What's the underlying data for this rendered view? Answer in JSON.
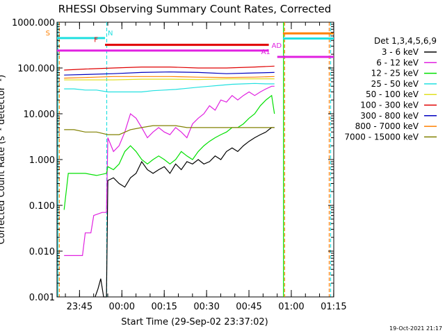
{
  "chart_data": {
    "type": "line",
    "title": "RHESSI Observing Summary Count Rates, Corrected",
    "xlabel": "Start Time (29-Sep-02 23:37:02)",
    "ylabel": "Corrected Count Rate (s⁻¹ detector⁻¹)",
    "y_scale": "log",
    "ylim": [
      0.001,
      1000
    ],
    "y_ticks": [
      0.001,
      0.01,
      0.1,
      1,
      10,
      100,
      1000
    ],
    "y_tick_labels": [
      "0.001",
      "0.010",
      "0.100",
      "1.000",
      "10.000",
      "100.000",
      "1000.000"
    ],
    "x_unit": "minutes after 23:37:02 on 29-Sep-02",
    "xlim": [
      0,
      98
    ],
    "x_ticks": [
      7.97,
      22.97,
      37.97,
      52.97,
      67.97,
      82.97,
      97.97
    ],
    "x_tick_labels": [
      "23:45",
      "00:00",
      "00:15",
      "00:30",
      "00:45",
      "01:00",
      "01:15"
    ],
    "timestamp": "19-Oct-2021 21:17",
    "legend": {
      "placement": "right",
      "title": "Det 1,3,4,5,6,9",
      "entries": [
        {
          "label": "3 - 6 keV",
          "color": "#000000"
        },
        {
          "label": "6 - 12 keV",
          "color": "#e020e0"
        },
        {
          "label": "12 - 25 keV",
          "color": "#00e000"
        },
        {
          "label": "25 - 50 keV",
          "color": "#20e0e0"
        },
        {
          "label": "50 - 100 keV",
          "color": "#e0e020"
        },
        {
          "label": "100 - 300 keV",
          "color": "#e00000"
        },
        {
          "label": "300 - 800 keV",
          "color": "#0000c0"
        },
        {
          "label": "800 - 7000 keV",
          "color": "#ff8000"
        },
        {
          "label": "7000 - 15000 keV",
          "color": "#808000"
        }
      ]
    },
    "flag_bars": [
      {
        "label": "S",
        "color": "#20e0e0",
        "x_start": 0,
        "x_end": 17,
        "y": 450,
        "label_color": "#ff8000"
      },
      {
        "label": "N",
        "color": "#20e0e0",
        "x_start": 17,
        "x_end": 17,
        "y": 450,
        "label_color": "#20e0e0"
      },
      {
        "label": "F",
        "color": "#e00000",
        "x_start": 17,
        "x_end": 75,
        "y": 320,
        "label_color": "#e00000"
      },
      {
        "label": "",
        "color": "#e020e0",
        "x_start": 0,
        "x_end": 75,
        "y": 240
      },
      {
        "label": "AD",
        "color": "#e020e0",
        "x_start": 75,
        "x_end": 75,
        "y": 240,
        "label_color": "#e020e0"
      },
      {
        "label": "A1",
        "color": "#e020e0",
        "x_start": 78,
        "x_end": 98,
        "y": 175,
        "label_color": "#e020e0"
      },
      {
        "label": "",
        "color": "#20e0e0",
        "x_start": 80,
        "x_end": 98,
        "y": 440
      },
      {
        "label": "",
        "color": "#ff8000",
        "x_start": 80,
        "x_end": 98,
        "y": 570
      }
    ],
    "vertical_markers": [
      {
        "x": 0.3,
        "color": "#20e0e0",
        "style": "solid"
      },
      {
        "x": 0.8,
        "color": "#ff8000",
        "style": "dashed"
      },
      {
        "x": 17.6,
        "color": "#20e0e0",
        "style": "dashed"
      },
      {
        "x": 80.2,
        "color": "#00e000",
        "style": "solid"
      },
      {
        "x": 80.6,
        "color": "#ff8000",
        "style": "dashed"
      },
      {
        "x": 96.4,
        "color": "#ff8000",
        "style": "dashed"
      },
      {
        "x": 96.9,
        "color": "#20e0e0",
        "style": "dashed"
      }
    ],
    "series": [
      {
        "name": "3 - 6 keV",
        "color": "#000000",
        "x": [
          13.5,
          14.5,
          15.5,
          16.5,
          17.5,
          18,
          20,
          22,
          24,
          26,
          28,
          30,
          32,
          34,
          36,
          38,
          40,
          42,
          44,
          46,
          48,
          50,
          52,
          54,
          56,
          58,
          60,
          62,
          64,
          66,
          68,
          70,
          72,
          74,
          75,
          76,
          77
        ],
        "y": [
          0.001,
          0.0015,
          0.0025,
          0.001,
          0.001,
          0.35,
          0.4,
          0.3,
          0.25,
          0.4,
          0.5,
          0.9,
          0.6,
          0.5,
          0.6,
          0.7,
          0.5,
          0.8,
          0.6,
          0.9,
          0.8,
          1.0,
          0.8,
          0.9,
          1.2,
          1.0,
          1.5,
          1.8,
          1.5,
          2.0,
          2.5,
          3.0,
          3.5,
          4.0,
          4.5,
          5.0,
          5.0
        ]
      },
      {
        "name": "6 - 12 keV",
        "color": "#e020e0",
        "x": [
          2.5,
          6,
          9,
          10,
          12,
          13,
          16,
          17.5,
          18,
          20,
          22,
          24,
          26,
          28,
          30,
          32,
          34,
          36,
          38,
          40,
          42,
          44,
          46,
          48,
          50,
          52,
          54,
          56,
          58,
          60,
          62,
          64,
          66,
          68,
          70,
          72,
          74,
          76,
          77
        ],
        "y": [
          0.008,
          0.008,
          0.008,
          0.025,
          0.025,
          0.06,
          0.07,
          0.07,
          3.0,
          1.5,
          2.0,
          4.0,
          10.0,
          8.0,
          5.0,
          3.0,
          4.0,
          5.0,
          4.0,
          3.5,
          5.0,
          4.0,
          3.0,
          6.0,
          8.0,
          10.0,
          15.0,
          12.0,
          20.0,
          18.0,
          25.0,
          20.0,
          25.0,
          30.0,
          25.0,
          30.0,
          35.0,
          40.0,
          40.0
        ]
      },
      {
        "name": "12 - 25 keV",
        "color": "#00e000",
        "x": [
          2.5,
          4,
          6,
          9,
          10,
          14,
          17.5,
          18,
          20,
          22,
          24,
          26,
          28,
          30,
          32,
          34,
          36,
          38,
          40,
          42,
          44,
          46,
          48,
          50,
          52,
          54,
          56,
          58,
          60,
          62,
          64,
          66,
          68,
          70,
          72,
          74,
          76,
          77
        ],
        "y": [
          0.08,
          0.5,
          0.5,
          0.5,
          0.5,
          0.45,
          0.5,
          0.7,
          0.6,
          0.8,
          1.5,
          2.0,
          1.5,
          1.0,
          0.8,
          1.0,
          1.2,
          1.0,
          0.8,
          1.0,
          1.5,
          1.2,
          1.0,
          1.5,
          2.0,
          2.5,
          3.0,
          3.5,
          4.0,
          5.0,
          5.0,
          6.0,
          8.0,
          10.0,
          15.0,
          20.0,
          25.0,
          10.0
        ]
      },
      {
        "name": "25 - 50 keV",
        "color": "#20e0e0",
        "x": [
          2.5,
          6,
          10,
          14,
          18,
          22,
          26,
          30,
          34,
          38,
          42,
          46,
          50,
          54,
          58,
          62,
          66,
          70,
          74,
          77
        ],
        "y": [
          35,
          35,
          33,
          33,
          30,
          30,
          30,
          30,
          32,
          33,
          34,
          36,
          38,
          40,
          42,
          44,
          45,
          46,
          45,
          45
        ]
      },
      {
        "name": "50 - 100 keV",
        "color": "#e0e020",
        "x": [
          2.5,
          10,
          20,
          30,
          40,
          50,
          60,
          70,
          77
        ],
        "y": [
          55,
          55,
          55,
          57,
          57,
          56,
          58,
          58,
          58
        ]
      },
      {
        "name": "100 - 300 keV",
        "color": "#e00000",
        "x": [
          2.5,
          10,
          20,
          30,
          40,
          50,
          60,
          70,
          77
        ],
        "y": [
          90,
          95,
          100,
          105,
          105,
          100,
          100,
          105,
          110
        ]
      },
      {
        "name": "300 - 800 keV",
        "color": "#0000c0",
        "x": [
          2.5,
          10,
          20,
          30,
          40,
          50,
          60,
          70,
          77
        ],
        "y": [
          70,
          72,
          75,
          80,
          82,
          80,
          75,
          78,
          80
        ]
      },
      {
        "name": "800 - 7000 keV",
        "color": "#ff8000",
        "x": [
          2.5,
          10,
          20,
          30,
          40,
          50,
          60,
          70,
          77
        ],
        "y": [
          60,
          62,
          65,
          65,
          65,
          63,
          62,
          63,
          65
        ]
      },
      {
        "name": "7000 - 15000 keV",
        "color": "#808000",
        "x": [
          2.5,
          6,
          10,
          14,
          18,
          22,
          26,
          30,
          34,
          38,
          42,
          46,
          50,
          54,
          58,
          62,
          66,
          70,
          74,
          77
        ],
        "y": [
          4.5,
          4.5,
          4.0,
          4.0,
          3.5,
          3.5,
          4.5,
          5.0,
          5.5,
          5.5,
          5.5,
          5.0,
          5.0,
          5.0,
          5.0,
          5.0,
          5.0,
          5.0,
          5.0,
          5.0
        ]
      }
    ]
  }
}
